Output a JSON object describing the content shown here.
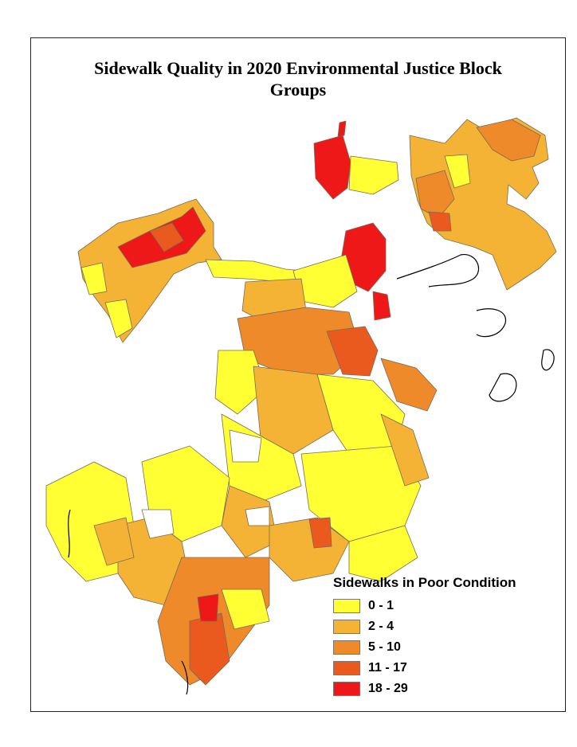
{
  "title": {
    "line1": "Sidewalk Quality in 2020 Environmental Justice Block",
    "line2": "Groups"
  },
  "legend": {
    "title": "Sidewalks in Poor Condition",
    "classes": [
      {
        "label": "0 - 1",
        "color": "#ffff33"
      },
      {
        "label": "2 - 4",
        "color": "#f5b335"
      },
      {
        "label": "5 - 10",
        "color": "#ee8a2a"
      },
      {
        "label": "11 - 17",
        "color": "#ea5a1f"
      },
      {
        "label": "18 - 29",
        "color": "#ee1818"
      }
    ]
  }
}
